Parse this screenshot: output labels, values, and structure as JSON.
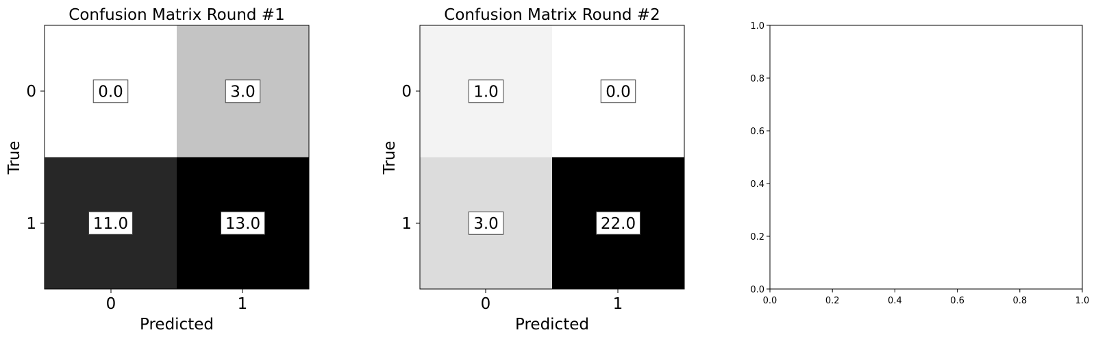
{
  "chart_data": [
    {
      "type": "heatmap",
      "title": "Confusion Matrix Round #1",
      "xlabel": "Predicted",
      "ylabel": "True",
      "x_ticks": [
        "0",
        "1"
      ],
      "y_ticks": [
        "0",
        "1"
      ],
      "values": [
        [
          0.0,
          3.0
        ],
        [
          11.0,
          13.0
        ]
      ],
      "cell_labels": [
        [
          "0.0",
          "3.0"
        ],
        [
          "11.0",
          "13.0"
        ]
      ],
      "colormap": "Greys",
      "vmin": 0.0,
      "vmax": 13.0
    },
    {
      "type": "heatmap",
      "title": "Confusion Matrix Round #2",
      "xlabel": "Predicted",
      "ylabel": "True",
      "x_ticks": [
        "0",
        "1"
      ],
      "y_ticks": [
        "0",
        "1"
      ],
      "values": [
        [
          1.0,
          0.0
        ],
        [
          3.0,
          22.0
        ]
      ],
      "cell_labels": [
        [
          "1.0",
          "0.0"
        ],
        [
          "3.0",
          "22.0"
        ]
      ],
      "colormap": "Greys",
      "vmin": 0.0,
      "vmax": 22.0
    },
    {
      "type": "scatter",
      "title": "",
      "xlabel": "",
      "ylabel": "",
      "xlim": [
        0.0,
        1.0
      ],
      "ylim": [
        0.0,
        1.0
      ],
      "x_ticks": [
        "0.0",
        "0.2",
        "0.4",
        "0.6",
        "0.8",
        "1.0"
      ],
      "y_ticks": [
        "0.0",
        "0.2",
        "0.4",
        "0.6",
        "0.8",
        "1.0"
      ],
      "series": []
    }
  ]
}
